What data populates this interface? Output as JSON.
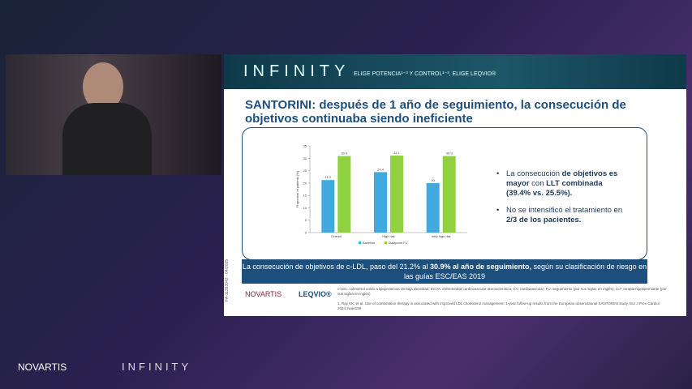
{
  "header": {
    "brand": "INFINITY",
    "tagline": "ELIGE POTENCIA¹⁻³ Y CONTROL¹⁻³, ELIGE LEQVIO®"
  },
  "slide": {
    "title": "SANTORINI: después de 1 año de seguimiento, la consecución de objetivos continuaba siendo ineficiente",
    "bullets": [
      [
        {
          "text": "La consecución ",
          "bold": false
        },
        {
          "text": "de objetivos es mayor",
          "bold": true
        },
        {
          "text": " con ",
          "bold": false
        },
        {
          "text": "LLT combinada (39.4% vs. 25.5%).",
          "bold": true
        }
      ],
      [
        {
          "text": "No se intensificó el tratamiento en ",
          "bold": false
        },
        {
          "text": "2/3 de los pacientes.",
          "bold": true
        }
      ]
    ],
    "banner": [
      {
        "text": "La consecución de objetivos de c-LDL, paso del 21.2% al ",
        "bold": false
      },
      {
        "text": "30.9% al año de seguimiento,",
        "bold": true
      },
      {
        "text": " según su clasificación de riesgo en las guías ESC/EAS 2019",
        "bold": false
      }
    ],
    "code": "FA-11393042 - 04/2025",
    "logo_left": "NOVARTIS",
    "logo_right": "LEQVIO®",
    "footnotes": [
      "c-LDL: colesterol unido a lipoproteínas de baja densidad; ECVA: enfermedad cardiovascular aterosclerótica; CV: cardiovascular; FU: seguimiento (por sus siglas en inglés); LLT: terapia hipolipemiante (por sus siglas en inglés)",
      "1. Ray KK, et al. Use of combination therapy is associated with improved LDL cholesterol management: 1-year follow-up results from the European observational SANTORINI study. Eur J Prev Cardiol 2024:zwae199"
    ]
  },
  "chart_data": {
    "type": "bar",
    "y_label": "Proportion of patients (%)",
    "categories": [
      "Overall",
      "High risk",
      "Very high risk"
    ],
    "series": [
      {
        "name": "Baseline",
        "color": "#3fa9e0",
        "values": [
          21.2,
          24.4,
          20.0
        ]
      },
      {
        "name": "Datapoint FU",
        "color": "#8fd13f",
        "values": [
          30.9,
          31.1,
          30.9
        ]
      }
    ],
    "ylim": [
      0,
      35
    ],
    "yticks": [
      0,
      5,
      10,
      15,
      20,
      25,
      30,
      35
    ],
    "grid": false
  },
  "footer": {
    "brand_left": "NOVARTIS",
    "brand_right": "INFINITY"
  }
}
